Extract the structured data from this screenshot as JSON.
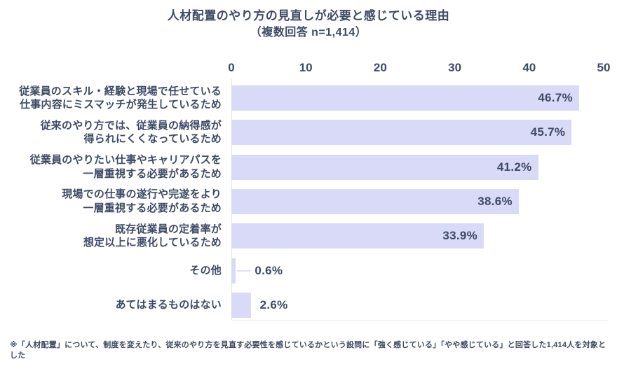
{
  "title": {
    "line1": "人材配置のやり方の見直しが必要と感じている理由",
    "line2": "（複数回答 n=1,414）"
  },
  "footnote": "※「人材配置」について、制度を変えたり、従来のやり方を見直す必要性を感じているかという設問に「強く感じている」「やや感じている」と回答した1,414人を対象とした",
  "colors": {
    "bar": "#d9d9f8",
    "text": "#3e4a66",
    "axis_line": "#e3e4ee",
    "baseline": "#ededf2",
    "leader": "#e2e2ec",
    "background": "#ffffff"
  },
  "chart_data": {
    "type": "bar",
    "orientation": "horizontal",
    "title": "人材配置のやり方の見直しが必要と感じている理由",
    "subtitle": "（複数回答 n=1,414）",
    "unit": "%",
    "n": 1414,
    "xlim": [
      0,
      50
    ],
    "x_ticks": [
      0,
      10,
      20,
      30,
      40,
      50
    ],
    "grid": false,
    "categories": [
      "従業員のスキル・経験と現場で任せている\n仕事内容にミスマッチが発生しているため",
      "従来のやり方では、従業員の納得感が\n得られにくくなっているため",
      "従業員のやりたい仕事やキャリアパスを\n一層重視する必要があるため",
      "現場での仕事の遂行や完遂をより\n一層重視する必要があるため",
      "既存従業員の定着率が\n想定以上に悪化しているため",
      "その他",
      "あてはまるものはない"
    ],
    "values": [
      46.7,
      45.7,
      41.2,
      38.6,
      33.9,
      0.6,
      2.6
    ],
    "rows": [
      {
        "label": "従業員のスキル・経験と現場で任せている\n仕事内容にミスマッチが発生しているため",
        "value": 46.7,
        "value_label": "46.7%",
        "value_position": "inside"
      },
      {
        "label": "従来のやり方では、従業員の納得感が\n得られにくくなっているため",
        "value": 45.7,
        "value_label": "45.7%",
        "value_position": "inside"
      },
      {
        "label": "従業員のやりたい仕事やキャリアパスを\n一層重視する必要があるため",
        "value": 41.2,
        "value_label": "41.2%",
        "value_position": "inside"
      },
      {
        "label": "現場での仕事の遂行や完遂をより\n一層重視する必要があるため",
        "value": 38.6,
        "value_label": "38.6%",
        "value_position": "inside"
      },
      {
        "label": "既存従業員の定着率が\n想定以上に悪化しているため",
        "value": 33.9,
        "value_label": "33.9%",
        "value_position": "inside"
      },
      {
        "label": "その他",
        "value": 0.6,
        "value_label": "0.6%",
        "value_position": "outside",
        "leader": true
      },
      {
        "label": "あてはまるものはない",
        "value": 2.6,
        "value_label": "2.6%",
        "value_position": "outside",
        "leader": false
      }
    ]
  }
}
